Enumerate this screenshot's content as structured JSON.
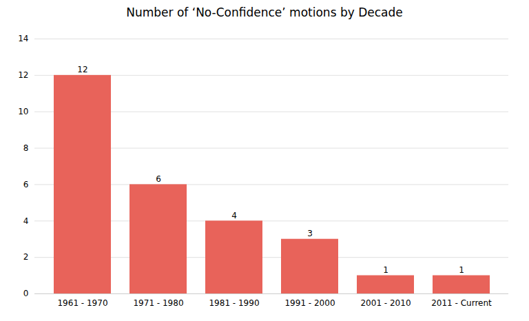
{
  "chart_data": {
    "type": "bar",
    "title": "Number of ‘No-Confidence’ motions by Decade",
    "categories": [
      "1961 - 1970",
      "1971 - 1980",
      "1981 - 1990",
      "1991 - 2000",
      "2001 - 2010",
      "2011 - Current"
    ],
    "values": [
      12,
      6,
      4,
      3,
      1,
      1
    ],
    "color": "#e8635a",
    "ylim": [
      0,
      14
    ],
    "yticks": [
      0,
      2,
      4,
      6,
      8,
      10,
      12,
      14
    ],
    "grid": true,
    "data_labels": true
  }
}
